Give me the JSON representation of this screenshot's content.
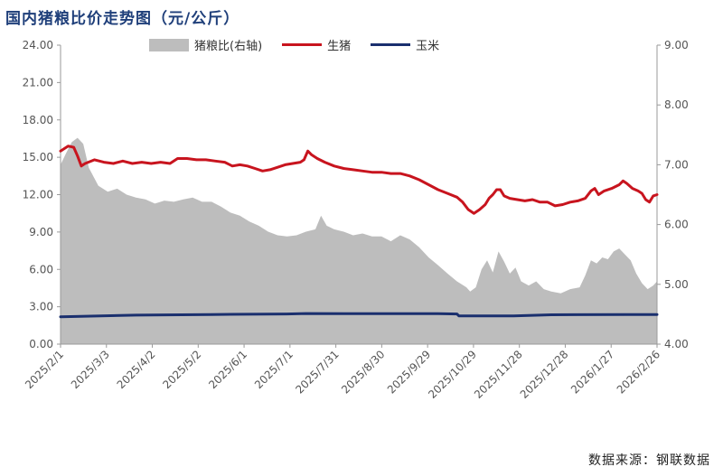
{
  "title": "国内猪粮比价走势图（元/公斤）",
  "source": "数据来源：钢联数据",
  "chart_data": {
    "type": "line",
    "x_ticks": [
      "2025/2/1",
      "2025/3/3",
      "2025/4/2",
      "2025/5/2",
      "2025/6/1",
      "2025/7/1",
      "2025/7/31",
      "2025/8/30",
      "2025/9/29",
      "2025/10/29",
      "2025/11/28",
      "2025/12/28",
      "2026/1/27",
      "2026/2/26"
    ],
    "y_left": {
      "ticks": [
        "0.00",
        "3.00",
        "6.00",
        "9.00",
        "12.00",
        "15.00",
        "18.00",
        "21.00",
        "24.00"
      ],
      "range": [
        0,
        24
      ]
    },
    "y_right": {
      "ticks": [
        "4.00",
        "5.00",
        "6.00",
        "7.00",
        "8.00",
        "9.00"
      ],
      "range": [
        4,
        9
      ]
    },
    "series": [
      {
        "name": "猪粮比(右轴)",
        "type": "area",
        "axis": "right",
        "color": "#bdbdbd",
        "points": [
          [
            0,
            7.0
          ],
          [
            3,
            7.2
          ],
          [
            6,
            7.38
          ],
          [
            9,
            7.45
          ],
          [
            12,
            7.35
          ],
          [
            15,
            6.95
          ],
          [
            20,
            6.65
          ],
          [
            25,
            6.55
          ],
          [
            30,
            6.6
          ],
          [
            35,
            6.5
          ],
          [
            40,
            6.45
          ],
          [
            45,
            6.42
          ],
          [
            50,
            6.35
          ],
          [
            55,
            6.4
          ],
          [
            60,
            6.38
          ],
          [
            65,
            6.42
          ],
          [
            70,
            6.45
          ],
          [
            75,
            6.38
          ],
          [
            80,
            6.38
          ],
          [
            85,
            6.3
          ],
          [
            90,
            6.2
          ],
          [
            95,
            6.15
          ],
          [
            100,
            6.05
          ],
          [
            105,
            5.98
          ],
          [
            110,
            5.88
          ],
          [
            115,
            5.82
          ],
          [
            120,
            5.8
          ],
          [
            125,
            5.82
          ],
          [
            130,
            5.88
          ],
          [
            135,
            5.92
          ],
          [
            138,
            6.15
          ],
          [
            141,
            5.98
          ],
          [
            145,
            5.92
          ],
          [
            150,
            5.88
          ],
          [
            155,
            5.82
          ],
          [
            160,
            5.85
          ],
          [
            165,
            5.8
          ],
          [
            170,
            5.8
          ],
          [
            175,
            5.72
          ],
          [
            180,
            5.82
          ],
          [
            185,
            5.75
          ],
          [
            190,
            5.62
          ],
          [
            195,
            5.45
          ],
          [
            200,
            5.32
          ],
          [
            205,
            5.18
          ],
          [
            210,
            5.05
          ],
          [
            215,
            4.95
          ],
          [
            217,
            4.88
          ],
          [
            220,
            4.95
          ],
          [
            223,
            5.25
          ],
          [
            226,
            5.4
          ],
          [
            229,
            5.2
          ],
          [
            232,
            5.55
          ],
          [
            235,
            5.38
          ],
          [
            238,
            5.18
          ],
          [
            241,
            5.28
          ],
          [
            244,
            5.05
          ],
          [
            248,
            4.98
          ],
          [
            252,
            5.05
          ],
          [
            256,
            4.92
          ],
          [
            260,
            4.88
          ],
          [
            265,
            4.85
          ],
          [
            270,
            4.92
          ],
          [
            275,
            4.95
          ],
          [
            278,
            5.15
          ],
          [
            281,
            5.4
          ],
          [
            284,
            5.35
          ],
          [
            287,
            5.45
          ],
          [
            290,
            5.42
          ],
          [
            293,
            5.55
          ],
          [
            296,
            5.6
          ],
          [
            299,
            5.5
          ],
          [
            302,
            5.4
          ],
          [
            305,
            5.18
          ],
          [
            308,
            5.02
          ],
          [
            311,
            4.92
          ],
          [
            314,
            4.98
          ],
          [
            316,
            5.05
          ]
        ]
      },
      {
        "name": "生猪",
        "type": "line",
        "axis": "left",
        "color": "#c8141e",
        "points": [
          [
            0,
            15.5
          ],
          [
            2,
            15.7
          ],
          [
            4,
            15.9
          ],
          [
            7,
            15.8
          ],
          [
            9,
            15.1
          ],
          [
            11,
            14.3
          ],
          [
            13,
            14.5
          ],
          [
            18,
            14.8
          ],
          [
            23,
            14.6
          ],
          [
            28,
            14.5
          ],
          [
            33,
            14.7
          ],
          [
            38,
            14.5
          ],
          [
            43,
            14.6
          ],
          [
            48,
            14.5
          ],
          [
            53,
            14.6
          ],
          [
            58,
            14.5
          ],
          [
            62,
            14.9
          ],
          [
            67,
            14.9
          ],
          [
            72,
            14.8
          ],
          [
            77,
            14.8
          ],
          [
            82,
            14.7
          ],
          [
            87,
            14.6
          ],
          [
            91,
            14.3
          ],
          [
            95,
            14.4
          ],
          [
            99,
            14.3
          ],
          [
            103,
            14.1
          ],
          [
            107,
            13.9
          ],
          [
            111,
            14.0
          ],
          [
            115,
            14.2
          ],
          [
            119,
            14.4
          ],
          [
            123,
            14.5
          ],
          [
            127,
            14.6
          ],
          [
            129,
            14.8
          ],
          [
            131,
            15.5
          ],
          [
            133,
            15.2
          ],
          [
            136,
            14.9
          ],
          [
            140,
            14.6
          ],
          [
            145,
            14.3
          ],
          [
            150,
            14.1
          ],
          [
            155,
            14.0
          ],
          [
            160,
            13.9
          ],
          [
            165,
            13.8
          ],
          [
            170,
            13.8
          ],
          [
            175,
            13.7
          ],
          [
            180,
            13.7
          ],
          [
            185,
            13.5
          ],
          [
            190,
            13.2
          ],
          [
            195,
            12.8
          ],
          [
            200,
            12.4
          ],
          [
            205,
            12.1
          ],
          [
            210,
            11.8
          ],
          [
            213,
            11.4
          ],
          [
            216,
            10.8
          ],
          [
            219,
            10.5
          ],
          [
            222,
            10.8
          ],
          [
            225,
            11.2
          ],
          [
            227,
            11.7
          ],
          [
            229,
            12.0
          ],
          [
            231,
            12.4
          ],
          [
            233,
            12.4
          ],
          [
            235,
            11.9
          ],
          [
            238,
            11.7
          ],
          [
            242,
            11.6
          ],
          [
            246,
            11.5
          ],
          [
            250,
            11.6
          ],
          [
            254,
            11.4
          ],
          [
            258,
            11.4
          ],
          [
            262,
            11.1
          ],
          [
            266,
            11.2
          ],
          [
            270,
            11.4
          ],
          [
            274,
            11.5
          ],
          [
            278,
            11.7
          ],
          [
            281,
            12.3
          ],
          [
            283,
            12.5
          ],
          [
            285,
            12.0
          ],
          [
            288,
            12.3
          ],
          [
            292,
            12.5
          ],
          [
            296,
            12.8
          ],
          [
            298,
            13.1
          ],
          [
            300,
            12.9
          ],
          [
            303,
            12.5
          ],
          [
            306,
            12.3
          ],
          [
            308,
            12.1
          ],
          [
            310,
            11.6
          ],
          [
            312,
            11.4
          ],
          [
            314,
            11.9
          ],
          [
            316,
            12.0
          ]
        ]
      },
      {
        "name": "玉米",
        "type": "line",
        "axis": "left",
        "color": "#1a2f6e",
        "points": [
          [
            0,
            2.2
          ],
          [
            40,
            2.33
          ],
          [
            80,
            2.38
          ],
          [
            120,
            2.42
          ],
          [
            130,
            2.46
          ],
          [
            160,
            2.44
          ],
          [
            200,
            2.44
          ],
          [
            210,
            2.42
          ],
          [
            211,
            2.27
          ],
          [
            240,
            2.27
          ],
          [
            260,
            2.36
          ],
          [
            300,
            2.38
          ],
          [
            316,
            2.38
          ]
        ]
      }
    ],
    "legend_position": "top",
    "grid": false
  }
}
